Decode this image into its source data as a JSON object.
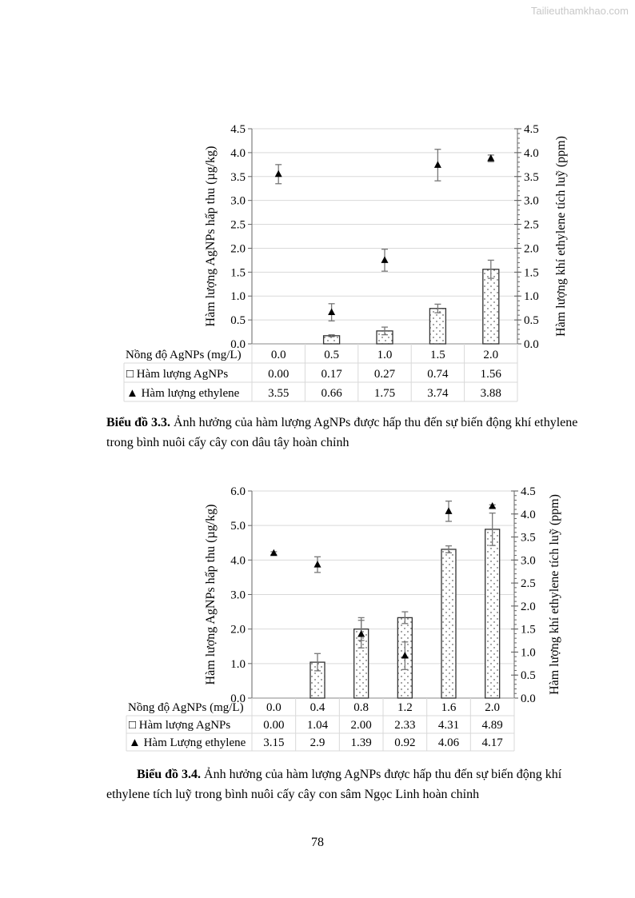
{
  "watermark": "Tailieuthamkhao.com",
  "captions": [
    {
      "label": "Biểu đồ 3.3.",
      "text": " Ảnh hưởng của hàm lượng AgNPs được hấp thu đến sự biến động khí ethylene trong bình nuôi cấy cây con dâu tây hoàn chỉnh"
    },
    {
      "label": "Biểu đồ 3.4.",
      "text": " Ảnh hưởng của hàm lượng AgNPs được hấp thu đến sự biến động khí ethylene tích luỹ trong bình nuôi cấy cây con sâm Ngọc Linh hoàn chỉnh"
    }
  ],
  "page_number": "78",
  "chart_data": [
    {
      "type": "bar",
      "title": "",
      "xlabel": "Nồng độ AgNPs (mg/L)",
      "ylabel": "Hàm lượng AgNPs hấp thu (µg/kg)",
      "y2label": "Hàm lượng khí ethylene tích luỹ (ppm)",
      "categories": [
        "0.0",
        "0.5",
        "1.0",
        "1.5",
        "2.0"
      ],
      "ylim": [
        0,
        4.5
      ],
      "yticks": [
        "0.0",
        "0.5",
        "1.0",
        "1.5",
        "2.0",
        "2.5",
        "3.0",
        "3.5",
        "4.0",
        "4.5"
      ],
      "y2lim": [
        0,
        4.5
      ],
      "y2ticks": [
        "0.0",
        "0.5",
        "1.0",
        "1.5",
        "2.0",
        "2.5",
        "3.0",
        "3.5",
        "4.0",
        "4.5"
      ],
      "grid": true,
      "series": [
        {
          "name": "Hàm lượng AgNPs",
          "marker": "□",
          "kind": "bar",
          "axis": "left",
          "values": [
            0.0,
            0.17,
            0.27,
            0.74,
            1.56
          ],
          "labels": [
            "0.00",
            "0.17",
            "0.27",
            "0.74",
            "1.56"
          ],
          "errors": [
            0,
            0.02,
            0.08,
            0.09,
            0.19
          ]
        },
        {
          "name": "Hàm lượng ethylene",
          "marker": "▲",
          "kind": "scatter",
          "axis": "right",
          "values": [
            3.55,
            0.66,
            1.75,
            3.74,
            3.88
          ],
          "labels": [
            "3.55",
            "0.66",
            "1.75",
            "3.74",
            "3.88"
          ],
          "errors": [
            0.2,
            0.18,
            0.23,
            0.33,
            0.07
          ]
        }
      ],
      "legend": "data-table"
    },
    {
      "type": "bar",
      "title": "",
      "xlabel": "Nồng độ AgNPs (mg/L)",
      "ylabel": "Hàm lượng AgNPs hấp thu (µg/kg)",
      "y2label": "Hàm lượng khí ethylene tích luỹ (ppm)",
      "categories": [
        "0.0",
        "0.4",
        "0.8",
        "1.2",
        "1.6",
        "2.0"
      ],
      "ylim": [
        0,
        6.0
      ],
      "yticks": [
        "0.0",
        "1.0",
        "2.0",
        "3.0",
        "4.0",
        "5.0",
        "6.0"
      ],
      "y2lim": [
        0,
        4.5
      ],
      "y2ticks": [
        "0.0",
        "0.5",
        "1.0",
        "1.5",
        "2.0",
        "2.5",
        "3.0",
        "3.5",
        "4.0",
        "4.5"
      ],
      "grid": true,
      "series": [
        {
          "name": "Hàm lượng AgNPs",
          "marker": "□",
          "kind": "bar",
          "axis": "left",
          "values": [
            0.0,
            1.04,
            2.0,
            2.33,
            4.31,
            4.89
          ],
          "labels": [
            "0.00",
            "1.04",
            "2.00",
            "2.33",
            "4.31",
            "4.89"
          ],
          "errors": [
            0,
            0.25,
            0.33,
            0.17,
            0.1,
            0.47
          ]
        },
        {
          "name": "Hàm Lượng ethylene",
          "marker": "▲",
          "kind": "scatter",
          "axis": "right",
          "values": [
            3.15,
            2.9,
            1.39,
            0.92,
            4.06,
            4.17
          ],
          "labels": [
            "3.15",
            "2.9",
            "1.39",
            "0.92",
            "4.06",
            "4.17"
          ],
          "errors": [
            0.03,
            0.17,
            0.3,
            0.3,
            0.22,
            0.03
          ]
        }
      ],
      "legend": "data-table"
    }
  ]
}
